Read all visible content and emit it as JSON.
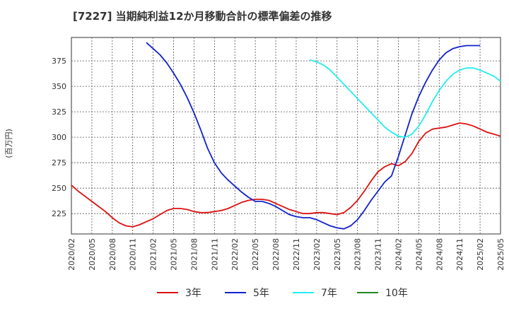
{
  "chart_data": {
    "type": "line",
    "title": "[7227]  当期純利益12か月移動合計の標準偏差の推移",
    "ylabel": "(百万円)",
    "xlabel": "",
    "ylim": [
      205,
      398
    ],
    "y_ticks": [
      225,
      250,
      275,
      300,
      325,
      350,
      375
    ],
    "x_ticks": [
      "2020/02",
      "2020/05",
      "2020/08",
      "2020/11",
      "2021/02",
      "2021/05",
      "2021/08",
      "2021/11",
      "2022/02",
      "2022/05",
      "2022/08",
      "2022/11",
      "2023/02",
      "2023/05",
      "2023/08",
      "2023/11",
      "2024/02",
      "2024/05",
      "2024/08",
      "2024/11",
      "2025/02",
      "2025/05"
    ],
    "grid": true,
    "legend_position": "bottom",
    "series": [
      {
        "name": "3年",
        "color": "#dd1111",
        "points": [
          [
            "2020/02",
            253
          ],
          [
            "2020/03",
            247
          ],
          [
            "2020/04",
            242
          ],
          [
            "2020/05",
            237
          ],
          [
            "2020/06",
            232
          ],
          [
            "2020/07",
            227
          ],
          [
            "2020/08",
            221
          ],
          [
            "2020/09",
            216
          ],
          [
            "2020/10",
            213
          ],
          [
            "2020/11",
            212
          ],
          [
            "2020/12",
            214
          ],
          [
            "2021/01",
            217
          ],
          [
            "2021/02",
            220
          ],
          [
            "2021/03",
            224
          ],
          [
            "2021/04",
            228
          ],
          [
            "2021/05",
            230
          ],
          [
            "2021/06",
            230
          ],
          [
            "2021/07",
            229
          ],
          [
            "2021/08",
            227
          ],
          [
            "2021/09",
            226
          ],
          [
            "2021/10",
            226
          ],
          [
            "2021/11",
            227
          ],
          [
            "2021/12",
            228
          ],
          [
            "2022/01",
            230
          ],
          [
            "2022/02",
            233
          ],
          [
            "2022/03",
            236
          ],
          [
            "2022/04",
            238
          ],
          [
            "2022/05",
            239
          ],
          [
            "2022/06",
            239
          ],
          [
            "2022/07",
            238
          ],
          [
            "2022/08",
            235
          ],
          [
            "2022/09",
            232
          ],
          [
            "2022/10",
            229
          ],
          [
            "2022/11",
            227
          ],
          [
            "2022/12",
            225
          ],
          [
            "2023/01",
            225
          ],
          [
            "2023/02",
            226
          ],
          [
            "2023/03",
            226
          ],
          [
            "2023/04",
            225
          ],
          [
            "2023/05",
            224
          ],
          [
            "2023/06",
            226
          ],
          [
            "2023/07",
            231
          ],
          [
            "2023/08",
            238
          ],
          [
            "2023/09",
            247
          ],
          [
            "2023/10",
            257
          ],
          [
            "2023/11",
            266
          ],
          [
            "2023/12",
            271
          ],
          [
            "2024/01",
            274
          ],
          [
            "2024/02",
            272
          ],
          [
            "2024/03",
            276
          ],
          [
            "2024/04",
            284
          ],
          [
            "2024/05",
            296
          ],
          [
            "2024/06",
            304
          ],
          [
            "2024/07",
            308
          ],
          [
            "2024/08",
            309
          ],
          [
            "2024/09",
            310
          ],
          [
            "2024/10",
            312
          ],
          [
            "2024/11",
            314
          ],
          [
            "2024/12",
            313
          ],
          [
            "2025/01",
            311
          ],
          [
            "2025/02",
            308
          ],
          [
            "2025/03",
            305
          ],
          [
            "2025/04",
            303
          ],
          [
            "2025/05",
            301
          ]
        ]
      },
      {
        "name": "5年",
        "color": "#1122cc",
        "points": [
          [
            "2021/01",
            393
          ],
          [
            "2021/02",
            387
          ],
          [
            "2021/03",
            381
          ],
          [
            "2021/04",
            373
          ],
          [
            "2021/05",
            363
          ],
          [
            "2021/06",
            352
          ],
          [
            "2021/07",
            339
          ],
          [
            "2021/08",
            324
          ],
          [
            "2021/09",
            307
          ],
          [
            "2021/10",
            289
          ],
          [
            "2021/11",
            275
          ],
          [
            "2021/12",
            265
          ],
          [
            "2022/01",
            258
          ],
          [
            "2022/02",
            252
          ],
          [
            "2022/03",
            246
          ],
          [
            "2022/04",
            241
          ],
          [
            "2022/05",
            237
          ],
          [
            "2022/06",
            237
          ],
          [
            "2022/07",
            235
          ],
          [
            "2022/08",
            232
          ],
          [
            "2022/09",
            228
          ],
          [
            "2022/10",
            224
          ],
          [
            "2022/11",
            222
          ],
          [
            "2022/12",
            221
          ],
          [
            "2023/01",
            221
          ],
          [
            "2023/02",
            219
          ],
          [
            "2023/03",
            216
          ],
          [
            "2023/04",
            213
          ],
          [
            "2023/05",
            211
          ],
          [
            "2023/06",
            210
          ],
          [
            "2023/07",
            213
          ],
          [
            "2023/08",
            219
          ],
          [
            "2023/09",
            228
          ],
          [
            "2023/10",
            238
          ],
          [
            "2023/11",
            247
          ],
          [
            "2023/12",
            256
          ],
          [
            "2024/01",
            262
          ],
          [
            "2024/02",
            281
          ],
          [
            "2024/03",
            302
          ],
          [
            "2024/04",
            323
          ],
          [
            "2024/05",
            340
          ],
          [
            "2024/06",
            354
          ],
          [
            "2024/07",
            366
          ],
          [
            "2024/08",
            376
          ],
          [
            "2024/09",
            383
          ],
          [
            "2024/10",
            387
          ],
          [
            "2024/11",
            389
          ],
          [
            "2024/12",
            390
          ],
          [
            "2025/01",
            390
          ],
          [
            "2025/02",
            390
          ]
        ]
      },
      {
        "name": "7年",
        "color": "#22eeee",
        "points": [
          [
            "2023/01",
            376
          ],
          [
            "2023/02",
            374
          ],
          [
            "2023/03",
            371
          ],
          [
            "2023/04",
            366
          ],
          [
            "2023/05",
            359
          ],
          [
            "2023/06",
            352
          ],
          [
            "2023/07",
            345
          ],
          [
            "2023/08",
            338
          ],
          [
            "2023/09",
            331
          ],
          [
            "2023/10",
            324
          ],
          [
            "2023/11",
            317
          ],
          [
            "2023/12",
            310
          ],
          [
            "2024/01",
            305
          ],
          [
            "2024/02",
            301
          ],
          [
            "2024/03",
            300
          ],
          [
            "2024/04",
            303
          ],
          [
            "2024/05",
            311
          ],
          [
            "2024/06",
            322
          ],
          [
            "2024/07",
            335
          ],
          [
            "2024/08",
            346
          ],
          [
            "2024/09",
            355
          ],
          [
            "2024/10",
            362
          ],
          [
            "2024/11",
            366
          ],
          [
            "2024/12",
            368
          ],
          [
            "2025/01",
            368
          ],
          [
            "2025/02",
            366
          ],
          [
            "2025/03",
            363
          ],
          [
            "2025/04",
            360
          ],
          [
            "2025/05",
            355
          ]
        ]
      },
      {
        "name": "10年",
        "color": "#228822",
        "points": []
      }
    ]
  }
}
